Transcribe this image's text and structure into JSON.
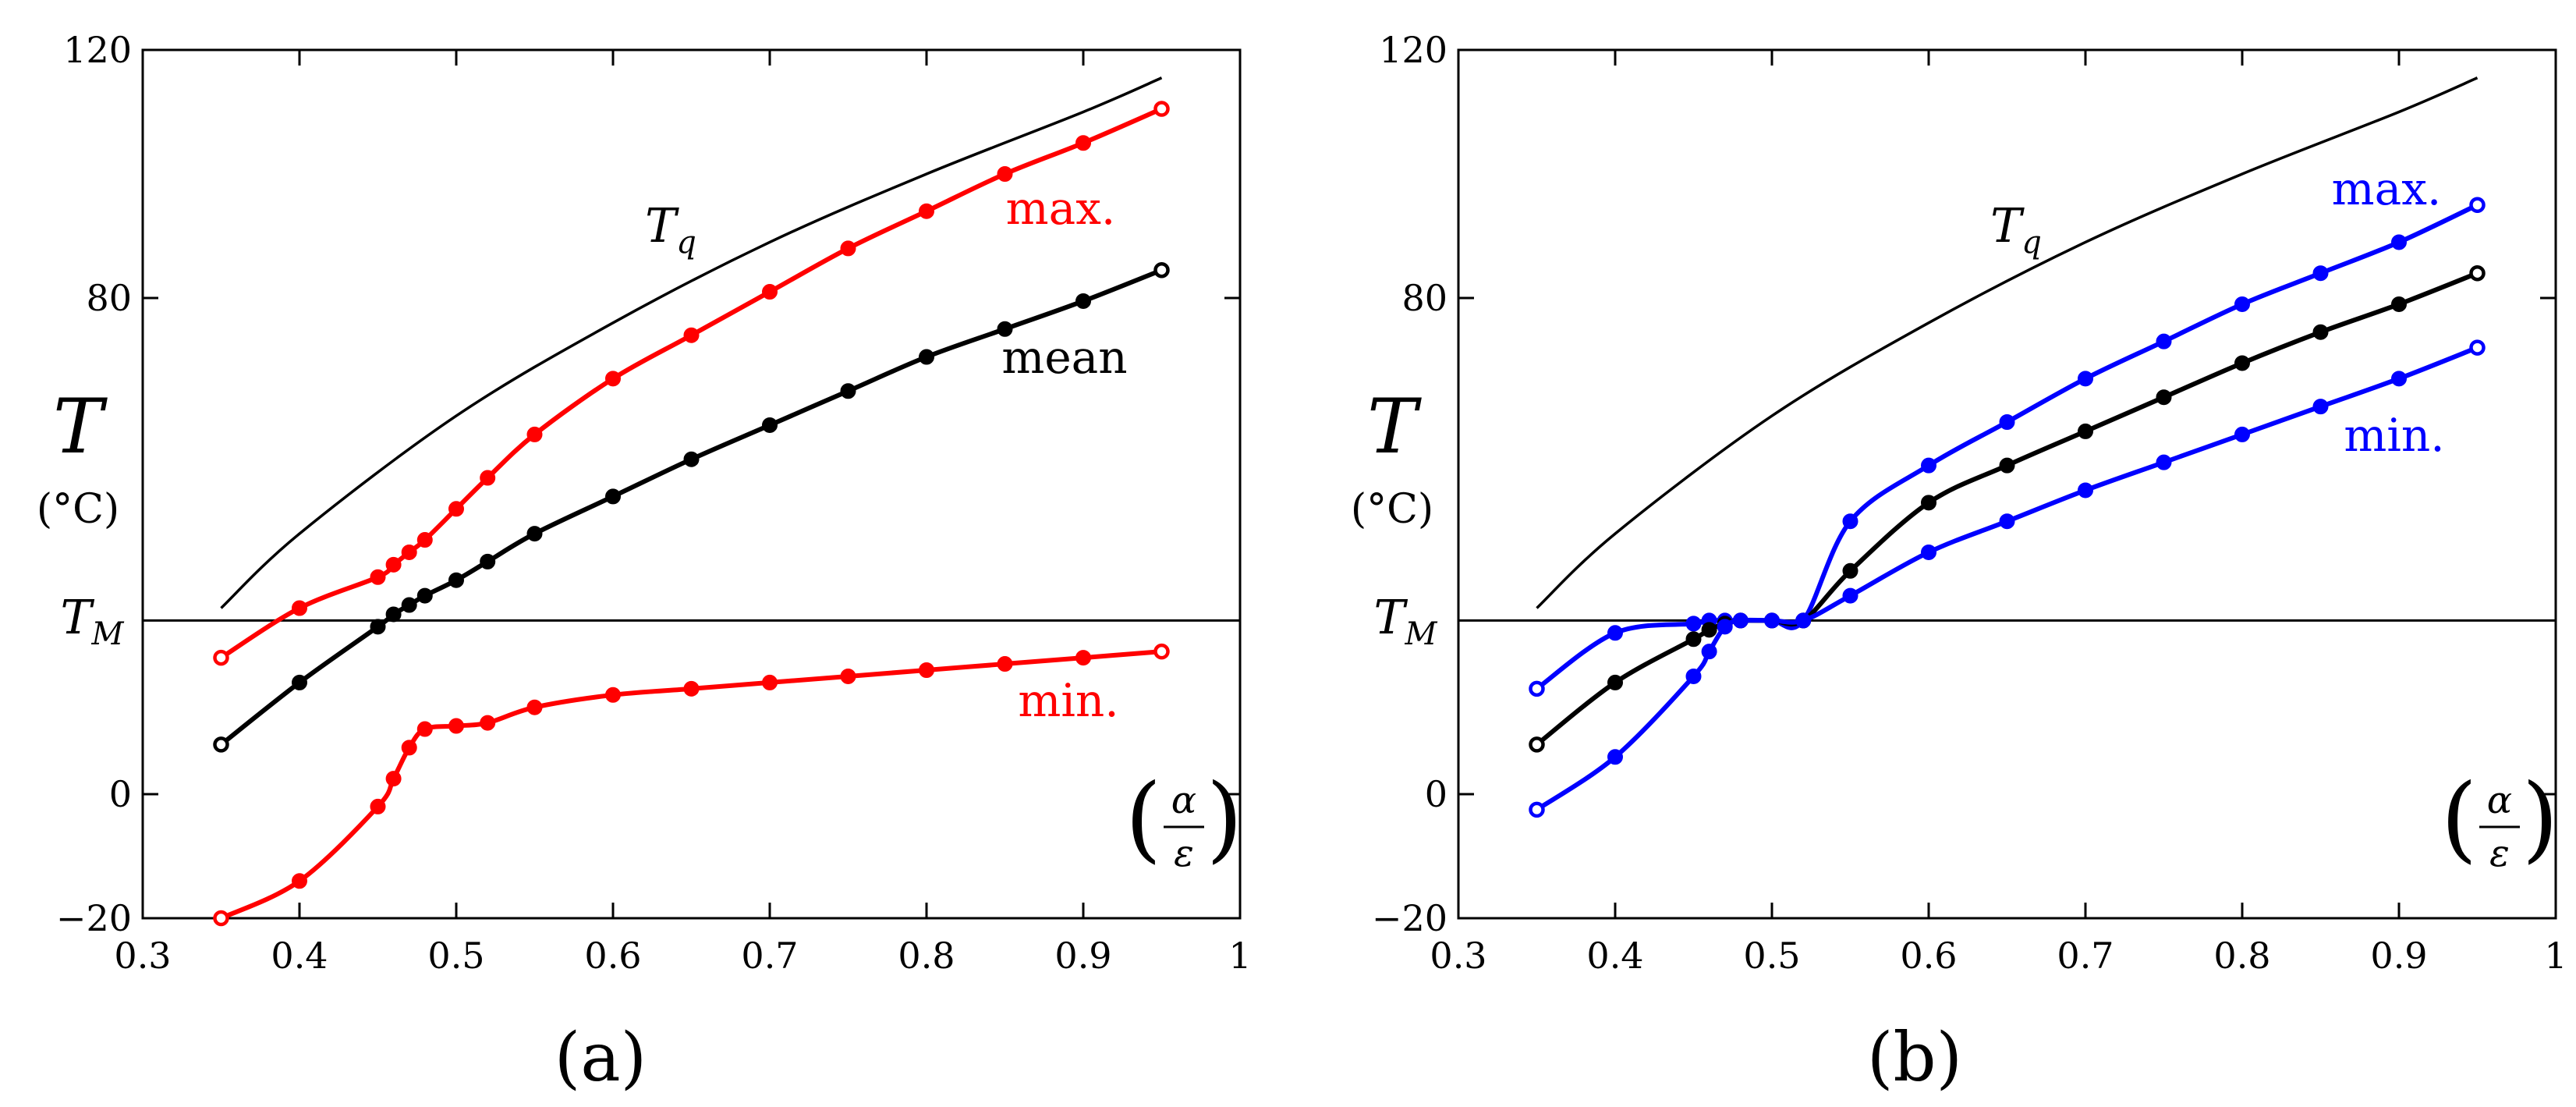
{
  "colors": {
    "red": "#ff0000",
    "blue": "#0000ff",
    "black": "#000000"
  },
  "chart_data": [
    {
      "type": "line",
      "panel": "a",
      "panel_label": "(a)",
      "xlim": [
        0.3,
        1.0
      ],
      "ylim": [
        -20,
        120
      ],
      "xticks": [
        "0.3",
        "0.4",
        "0.5",
        "0.6",
        "0.7",
        "0.8",
        "0.9",
        "1"
      ],
      "yticks": [
        "−20",
        "0",
        "80",
        "120"
      ],
      "ylabel": {
        "symbol": "T",
        "unit": "(°C)"
      },
      "xlabel": {
        "num": "α",
        "den": "ε"
      },
      "tm_label": {
        "symbol": "T",
        "sub": "M"
      },
      "tm_value": 28,
      "tq_label": {
        "symbol": "T",
        "sub": "q"
      },
      "tq_curve": {
        "x": [
          0.35,
          0.4,
          0.5,
          0.6,
          0.7,
          0.8,
          0.9,
          0.95
        ],
        "y": [
          30,
          42,
          61,
          76,
          89,
          100,
          110,
          115.5
        ]
      },
      "series": [
        {
          "name": "max.",
          "color": "red",
          "x": [
            0.35,
            0.4,
            0.45,
            0.46,
            0.47,
            0.48,
            0.5,
            0.52,
            0.55,
            0.6,
            0.65,
            0.7,
            0.75,
            0.8,
            0.85,
            0.9,
            0.95
          ],
          "y": [
            22,
            30,
            35,
            37,
            39,
            41,
            46,
            51,
            58,
            67,
            74,
            81,
            88,
            94,
            100,
            105,
            110.5
          ]
        },
        {
          "name": "mean",
          "color": "black",
          "x": [
            0.35,
            0.4,
            0.45,
            0.46,
            0.47,
            0.48,
            0.5,
            0.52,
            0.55,
            0.6,
            0.65,
            0.7,
            0.75,
            0.8,
            0.85,
            0.9,
            0.95
          ],
          "y": [
            8,
            18,
            27,
            29,
            30.5,
            32,
            34.5,
            37.5,
            42,
            48,
            54,
            59.5,
            65,
            70.5,
            75,
            79.5,
            84.5
          ]
        },
        {
          "name": "min.",
          "color": "red",
          "x": [
            0.35,
            0.4,
            0.45,
            0.46,
            0.47,
            0.48,
            0.5,
            0.52,
            0.55,
            0.6,
            0.65,
            0.7,
            0.75,
            0.8,
            0.85,
            0.9,
            0.95
          ],
          "y": [
            -20,
            -14,
            -2,
            2.5,
            7.5,
            10.5,
            11,
            11.5,
            14,
            16,
            17,
            18,
            19,
            20,
            21,
            22,
            23
          ]
        }
      ],
      "annotations": [
        {
          "text": "max.",
          "color": "red"
        },
        {
          "text": "mean",
          "color": "black"
        },
        {
          "text": "min.",
          "color": "red"
        }
      ]
    },
    {
      "type": "line",
      "panel": "b",
      "panel_label": "(b)",
      "xlim": [
        0.3,
        1.0
      ],
      "ylim": [
        -20,
        120
      ],
      "xticks": [
        "0.3",
        "0.4",
        "0.5",
        "0.6",
        "0.7",
        "0.8",
        "0.9",
        "1"
      ],
      "yticks": [
        "−20",
        "0",
        "80",
        "120"
      ],
      "ylabel": {
        "symbol": "T",
        "unit": "(°C)"
      },
      "xlabel": {
        "num": "α",
        "den": "ε"
      },
      "tm_label": {
        "symbol": "T",
        "sub": "M"
      },
      "tm_value": 28,
      "tq_label": {
        "symbol": "T",
        "sub": "q"
      },
      "tq_curve": {
        "x": [
          0.35,
          0.4,
          0.5,
          0.6,
          0.7,
          0.8,
          0.9,
          0.95
        ],
        "y": [
          30,
          42,
          61,
          76,
          89,
          100,
          110,
          115.5
        ]
      },
      "series": [
        {
          "name": "max.",
          "color": "blue",
          "x": [
            0.35,
            0.4,
            0.45,
            0.46,
            0.47,
            0.48,
            0.5,
            0.52,
            0.55,
            0.6,
            0.65,
            0.7,
            0.75,
            0.8,
            0.85,
            0.9,
            0.95
          ],
          "y": [
            17,
            26,
            27.5,
            28,
            28,
            28,
            28,
            28,
            44,
            53,
            60,
            67,
            73,
            79,
            84,
            89,
            95
          ]
        },
        {
          "name": "mean",
          "color": "black",
          "x": [
            0.35,
            0.4,
            0.45,
            0.46,
            0.47,
            0.48,
            0.5,
            0.52,
            0.55,
            0.6,
            0.65,
            0.7,
            0.75,
            0.8,
            0.85,
            0.9,
            0.95
          ],
          "y": [
            8,
            18,
            25,
            26.5,
            27.5,
            28,
            28,
            28,
            36,
            47,
            53,
            58.5,
            64,
            69.5,
            74.5,
            79,
            84
          ]
        },
        {
          "name": "min.",
          "color": "blue",
          "x": [
            0.35,
            0.4,
            0.45,
            0.46,
            0.47,
            0.48,
            0.5,
            0.52,
            0.55,
            0.6,
            0.65,
            0.7,
            0.75,
            0.8,
            0.85,
            0.9,
            0.95
          ],
          "y": [
            -2.5,
            6,
            19,
            23,
            27,
            28,
            28,
            28,
            32,
            39,
            44,
            49,
            53.5,
            58,
            62.5,
            67,
            72
          ]
        }
      ],
      "annotations": [
        {
          "text": "max.",
          "color": "blue"
        },
        {
          "text": "min.",
          "color": "blue"
        }
      ]
    }
  ]
}
